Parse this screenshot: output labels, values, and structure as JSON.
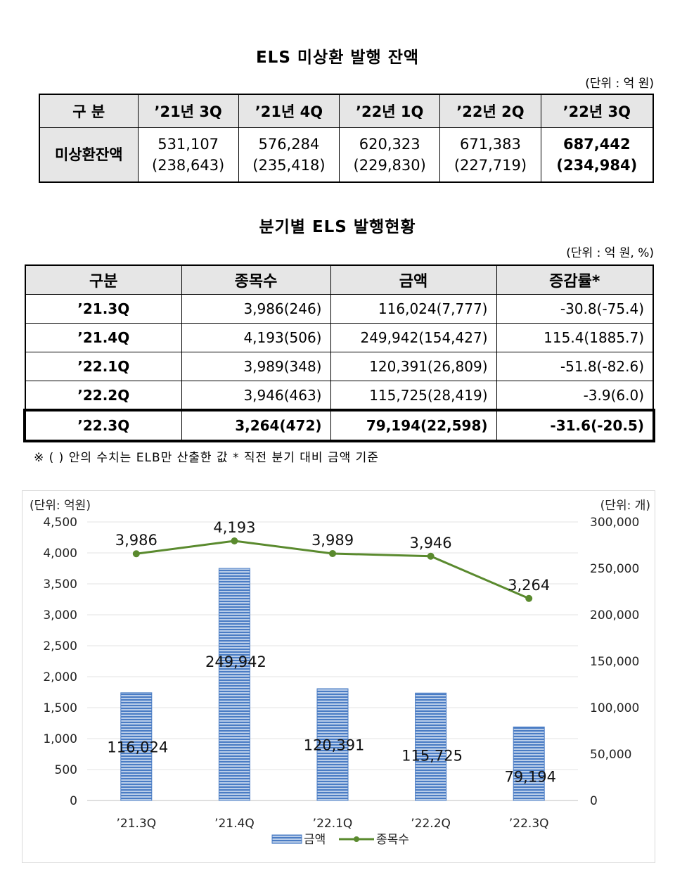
{
  "table1": {
    "title": "ELS 미상환 발행 잔액",
    "unit": "(단위 : 억 원)",
    "headers": [
      "구 분",
      "’21년 3Q",
      "’21년 4Q",
      "’22년 1Q",
      "’22년 2Q",
      "’22년 3Q"
    ],
    "row_label": "미상환잔액",
    "values": [
      "531,107",
      "576,284",
      "620,323",
      "671,383",
      "687,442"
    ],
    "elb_values": [
      "(238,643)",
      "(235,418)",
      "(229,830)",
      "(227,719)",
      "(234,984)"
    ]
  },
  "table2": {
    "title": "분기별 ELS 발행현황",
    "unit": "(단위 : 억 원, %)",
    "headers": [
      "구분",
      "종목수",
      "금액",
      "증감률*"
    ],
    "rows": [
      {
        "quarter": "’21.3Q",
        "count": "3,986(246)",
        "amount": "116,024(7,777)",
        "change": "-30.8(-75.4)"
      },
      {
        "quarter": "’21.4Q",
        "count": "4,193(506)",
        "amount": "249,942(154,427)",
        "change": "115.4(1885.7)"
      },
      {
        "quarter": "’22.1Q",
        "count": "3,989(348)",
        "amount": "120,391(26,809)",
        "change": "-51.8(-82.6)"
      },
      {
        "quarter": "’22.2Q",
        "count": "3,946(463)",
        "amount": "115,725(28,419)",
        "change": "-3.9(6.0)"
      },
      {
        "quarter": "’22.3Q",
        "count": "3,264(472)",
        "amount": "79,194(22,598)",
        "change": "-31.6(-20.5)"
      }
    ],
    "note": "※ (   ) 안의 수치는 ELB만 산출한 값  * 직전 분기 대비 금액 기준"
  },
  "chart_data": {
    "type": "bar",
    "categories": [
      "’21.3Q",
      "’21.4Q",
      "’22.1Q",
      "’22.2Q",
      "’22.3Q"
    ],
    "left_axis_label": "(단위: 억원)",
    "right_axis_label": "(단위: 개)",
    "left_ylim": [
      0,
      4500
    ],
    "left_ticks": [
      0,
      500,
      1000,
      1500,
      2000,
      2500,
      3000,
      3500,
      4000,
      4500
    ],
    "right_ylim": [
      0,
      300000
    ],
    "right_ticks": [
      0,
      50000,
      100000,
      150000,
      200000,
      250000,
      300000
    ],
    "series": [
      {
        "name": "금액",
        "type": "bar",
        "axis": "right",
        "values": [
          116024,
          249942,
          120391,
          115725,
          79194
        ],
        "labels": [
          "116,024",
          "249,942",
          "120,391",
          "115,725",
          "79,194"
        ],
        "color": "#4a7cc4"
      },
      {
        "name": "종목수",
        "type": "line",
        "axis": "left",
        "values": [
          3986,
          4193,
          3989,
          3946,
          3264
        ],
        "labels": [
          "3,986",
          "4,193",
          "3,989",
          "3,946",
          "3,264"
        ],
        "color": "#5a8a2e"
      }
    ],
    "grid": true,
    "legend": "bottom"
  }
}
